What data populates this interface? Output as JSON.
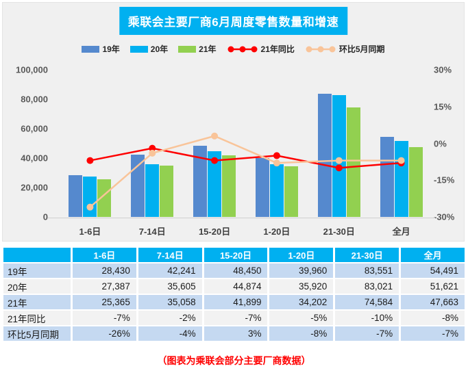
{
  "chart": {
    "title": "乘联会主要厂商6月周度零售数量和增速"
  },
  "chart_data": {
    "type": "bar+line combo",
    "title": "乘联会主要厂商6月周度零售数量和增速",
    "categories": [
      "1-6日",
      "7-14日",
      "15-20日",
      "1-20日",
      "21-30日",
      "全月"
    ],
    "bar_series": [
      {
        "name": "19年",
        "color": "#5589CE",
        "values": [
          28430,
          42241,
          48450,
          39960,
          83551,
          54491
        ]
      },
      {
        "name": "20年",
        "color": "#00B0F0",
        "values": [
          27387,
          35605,
          44874,
          35920,
          83021,
          51621
        ]
      },
      {
        "name": "21年",
        "color": "#92D050",
        "values": [
          25365,
          35058,
          41899,
          34202,
          74584,
          47663
        ]
      }
    ],
    "line_series": [
      {
        "name": "21年同比",
        "color": "#FE0000",
        "values_pct": [
          -7,
          -2,
          -7,
          -5,
          -10,
          -8
        ]
      },
      {
        "name": "环比5月同期",
        "color": "#F9C499",
        "values_pct": [
          -26,
          -4,
          3,
          -8,
          -7,
          -7
        ]
      }
    ],
    "left_axis": {
      "min": 0,
      "max": 100000,
      "ticks": [
        "100,000",
        "80,000",
        "60,000",
        "40,000",
        "20,000",
        "0"
      ]
    },
    "right_axis": {
      "min": -30,
      "max": 30,
      "ticks": [
        "30%",
        "15%",
        "0%",
        "-15%",
        "-30%"
      ]
    },
    "grid": false,
    "legend_position": "top"
  },
  "table": {
    "header": [
      "",
      "1-6日",
      "7-14日",
      "15-20日",
      "1-20日",
      "21-30日",
      "全月"
    ],
    "rows": [
      {
        "label": "19年",
        "values": [
          "28,430",
          "42,241",
          "48,450",
          "39,960",
          "83,551",
          "54,491"
        ]
      },
      {
        "label": "20年",
        "values": [
          "27,387",
          "35,605",
          "44,874",
          "35,920",
          "83,021",
          "51,621"
        ]
      },
      {
        "label": "21年",
        "values": [
          "25,365",
          "35,058",
          "41,899",
          "34,202",
          "74,584",
          "47,663"
        ]
      },
      {
        "label": "21年同比",
        "values": [
          "-7%",
          "-2%",
          "-7%",
          "-5%",
          "-10%",
          "-8%"
        ]
      },
      {
        "label": "环比5月同期",
        "values": [
          "-26%",
          "-4%",
          "3%",
          "-8%",
          "-7%",
          "-7%"
        ]
      }
    ]
  },
  "footer": {
    "note": "（图表为乘联会部分主要厂商数据）"
  },
  "colors": {
    "accent_cyan": "#00B0F0",
    "bar_blue": "#5589CE",
    "bar_cyan": "#00B0F0",
    "bar_green": "#92D050",
    "line_red": "#FE0000",
    "line_peach": "#F9C499",
    "table_stripe_blue": "#C5D9F1",
    "table_stripe_gray": "#F2F2F2",
    "panel_bg": "#F0F0F0",
    "note_red": "#FF0000"
  }
}
